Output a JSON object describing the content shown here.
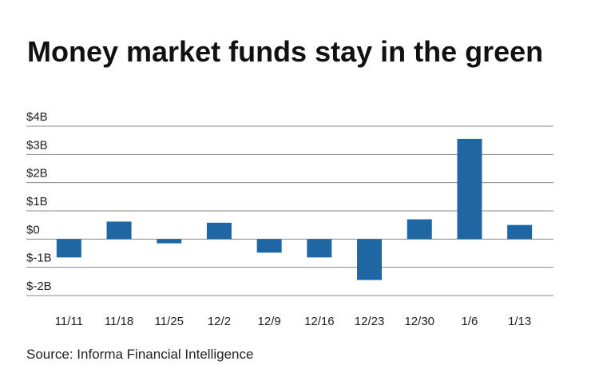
{
  "title": "Money market funds stay in the green",
  "source": "Source: Informa Financial Intelligence",
  "colors": {
    "bar": "#1f67a3",
    "grid": "#8a8a8a",
    "text": "#222222"
  },
  "chart_data": {
    "type": "bar",
    "title": "Money market funds stay in the green",
    "xlabel": "",
    "ylabel": "",
    "categories": [
      "11/11",
      "11/18",
      "11/25",
      "12/2",
      "12/9",
      "12/16",
      "12/23",
      "12/30",
      "1/6",
      "1/13"
    ],
    "values": [
      -0.65,
      0.62,
      -0.15,
      0.58,
      -0.48,
      -0.65,
      -1.45,
      0.7,
      3.55,
      0.5
    ],
    "unit": "billion USD",
    "ylim": [
      -2,
      4
    ],
    "yticks": [
      4,
      3,
      2,
      1,
      0,
      -1,
      -2
    ],
    "ytick_labels": [
      "$4B",
      "$3B",
      "$2B",
      "$1B",
      "$0",
      "$-1B",
      "$-2B"
    ],
    "grid": true,
    "legend": "none"
  }
}
